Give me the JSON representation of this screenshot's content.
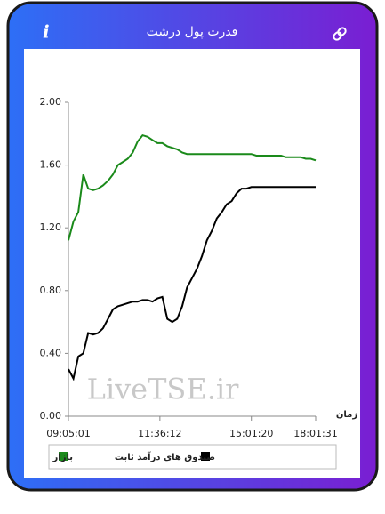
{
  "header": {
    "title": "قدرت پول درشت",
    "info_icon": "i"
  },
  "chart_data": {
    "type": "line",
    "x_label": "زمان",
    "watermark": "LiveTSE.ir",
    "x": [
      0,
      2,
      4,
      6,
      8,
      10,
      12,
      14,
      16,
      18,
      20,
      22,
      24,
      26,
      28,
      30,
      32,
      34,
      36,
      38,
      40,
      42,
      44,
      46,
      48,
      50,
      52,
      54,
      56,
      58,
      60,
      62,
      64,
      66,
      68,
      70,
      72,
      74,
      76,
      78,
      80,
      82,
      84,
      86,
      88,
      90,
      92,
      94,
      96,
      98,
      100
    ],
    "series": [
      {
        "name": "بازار",
        "color": "#1a8a1a",
        "values": [
          1.12,
          1.24,
          1.3,
          1.54,
          1.45,
          1.44,
          1.45,
          1.47,
          1.5,
          1.54,
          1.6,
          1.62,
          1.64,
          1.68,
          1.75,
          1.79,
          1.78,
          1.76,
          1.74,
          1.74,
          1.72,
          1.71,
          1.7,
          1.68,
          1.67,
          1.67,
          1.67,
          1.67,
          1.67,
          1.67,
          1.67,
          1.67,
          1.67,
          1.67,
          1.67,
          1.67,
          1.67,
          1.67,
          1.66,
          1.66,
          1.66,
          1.66,
          1.66,
          1.66,
          1.65,
          1.65,
          1.65,
          1.65,
          1.64,
          1.64,
          1.63
        ]
      },
      {
        "name": "صندوق های درآمد ثابت",
        "color": "#000000",
        "values": [
          0.3,
          0.24,
          0.38,
          0.4,
          0.53,
          0.52,
          0.53,
          0.56,
          0.62,
          0.68,
          0.7,
          0.71,
          0.72,
          0.73,
          0.73,
          0.74,
          0.74,
          0.73,
          0.75,
          0.76,
          0.62,
          0.6,
          0.62,
          0.7,
          0.82,
          0.88,
          0.94,
          1.02,
          1.12,
          1.18,
          1.26,
          1.3,
          1.35,
          1.37,
          1.42,
          1.45,
          1.45,
          1.46,
          1.46,
          1.46,
          1.46,
          1.46,
          1.46,
          1.46,
          1.46,
          1.46,
          1.46,
          1.46,
          1.46,
          1.46,
          1.46
        ]
      }
    ],
    "xlim": [
      0,
      100
    ],
    "xticks": [
      {
        "value": 0,
        "label": "09:05:01"
      },
      {
        "value": 37,
        "label": "11:36:12"
      },
      {
        "value": 74,
        "label": "15:01:20"
      },
      {
        "value": 100,
        "label": "18:01:31"
      }
    ],
    "ylim": [
      0,
      2
    ],
    "yticks": [
      {
        "value": 0,
        "label": "0.00"
      },
      {
        "value": 0.4,
        "label": "0.40"
      },
      {
        "value": 0.8,
        "label": "0.80"
      },
      {
        "value": 1.2,
        "label": "1.20"
      },
      {
        "value": 1.6,
        "label": "1.60"
      },
      {
        "value": 2,
        "label": "2.00"
      }
    ],
    "grid": false
  }
}
